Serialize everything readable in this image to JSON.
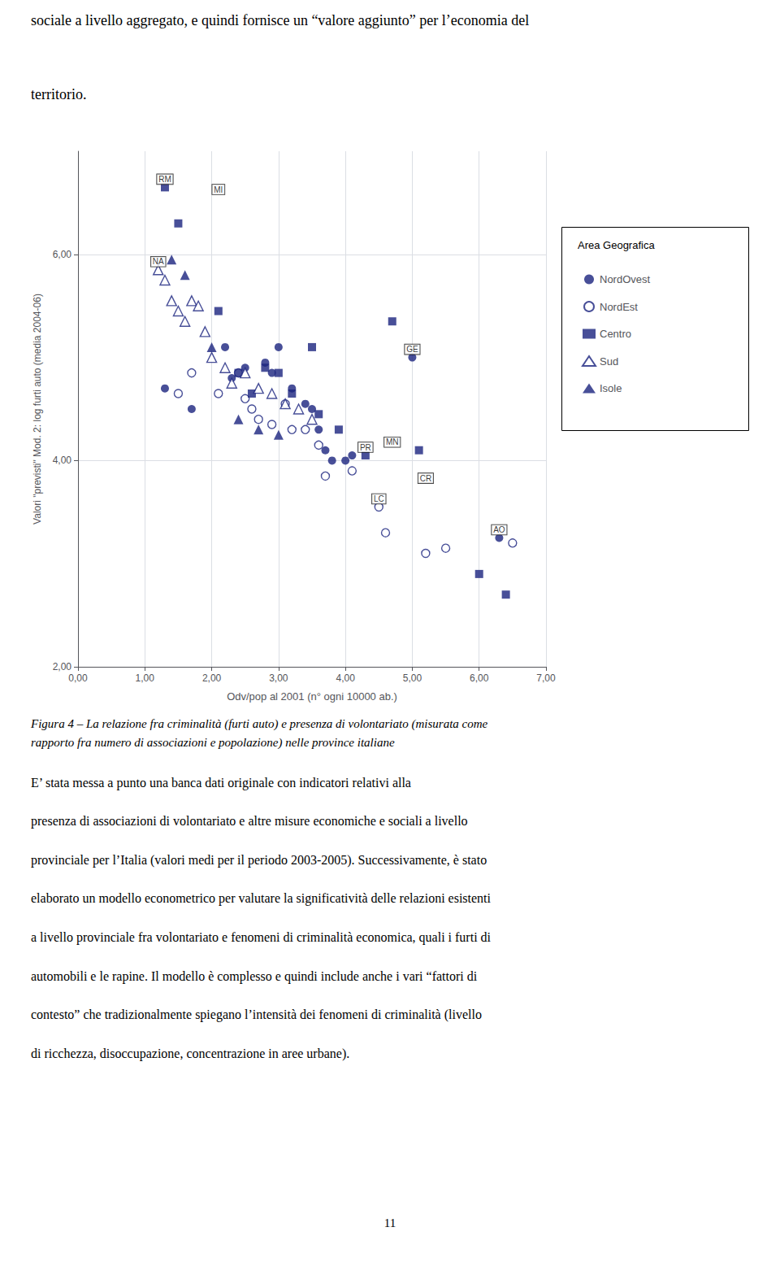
{
  "chart_data": {
    "type": "scatter",
    "text_above": [
      "sociale a livello aggregato, e quindi fornisce un “valore aggiunto” per l’economia del",
      "territorio."
    ],
    "caption": [
      "Figura 4 – La relazione fra criminalità (furti auto) e presenza di volontariato (misurata come",
      "rapporto fra numero di associazioni e popolazione) nelle province italiane"
    ],
    "body": [
      "E’ stata messa a punto una banca dati originale con indicatori relativi alla",
      "presenza di associazioni di volontariato e altre misure economiche e sociali a livello",
      "provinciale per l’Italia (valori medi per il periodo 2003-2005). Successivamente, è stato",
      "elaborato un modello econometrico per valutare la significatività delle relazioni esistenti",
      "a livello provinciale fra volontariato e fenomeni di criminalità economica, quali i furti di",
      "automobili e le rapine. Il modello è complesso e quindi include anche i vari “fattori di",
      "contesto” che tradizionalmente spiegano l’intensità dei fenomeni di criminalità (livello",
      "di ricchezza, disoccupazione, concentrazione in aree urbane)."
    ],
    "page_number": "11",
    "x_label": "Odv/pop al 2001 (n° ogni 10000 ab.)",
    "y_label": "Valori \"previsti\" Mod. 2: log furti auto (media 2004-06)",
    "xlim": [
      0.0,
      7.0
    ],
    "ylim": [
      2.0,
      7.0
    ],
    "xticks": [
      {
        "value": 0.0,
        "label": "0,00"
      },
      {
        "value": 1.0,
        "label": "1,00"
      },
      {
        "value": 2.0,
        "label": "2,00"
      },
      {
        "value": 3.0,
        "label": "3,00"
      },
      {
        "value": 4.0,
        "label": "4,00"
      },
      {
        "value": 5.0,
        "label": "5,00"
      },
      {
        "value": 6.0,
        "label": "6,00"
      },
      {
        "value": 7.0,
        "label": "7,00"
      }
    ],
    "yticks": [
      {
        "value": 2.0,
        "label": "2,00"
      },
      {
        "value": 4.0,
        "label": "4,00"
      },
      {
        "value": 6.0,
        "label": "6,00"
      }
    ],
    "grid": true,
    "legend": "right",
    "legend_title": "Area Geografica",
    "color": "#1a237e",
    "series": [
      {
        "name": "NordOvest",
        "marker": "circle",
        "x": [
          1.3,
          1.7,
          2.2,
          2.3,
          2.5,
          2.8,
          2.9,
          3.0,
          3.2,
          3.4,
          3.5,
          3.6,
          3.7,
          3.8,
          4.0,
          4.1,
          5.0,
          6.3
        ],
        "y": [
          4.7,
          4.5,
          5.1,
          4.8,
          4.9,
          4.95,
          4.85,
          5.1,
          4.7,
          4.55,
          4.5,
          4.3,
          4.1,
          4.0,
          4.0,
          4.05,
          5.0,
          3.25
        ]
      },
      {
        "name": "NordEst",
        "marker": "open_circle",
        "x": [
          1.5,
          1.7,
          2.1,
          2.4,
          2.5,
          2.6,
          2.7,
          2.9,
          3.1,
          3.2,
          3.4,
          3.6,
          3.7,
          4.1,
          4.5,
          4.6,
          5.2,
          5.5,
          6.5
        ],
        "y": [
          4.65,
          4.85,
          4.65,
          4.85,
          4.6,
          4.5,
          4.4,
          4.35,
          4.55,
          4.3,
          4.3,
          4.15,
          3.85,
          3.9,
          3.55,
          3.3,
          3.1,
          3.15,
          3.2
        ]
      },
      {
        "name": "Centro",
        "marker": "square",
        "x": [
          1.3,
          1.5,
          2.1,
          2.4,
          2.6,
          2.8,
          3.0,
          3.2,
          3.5,
          3.6,
          3.9,
          4.3,
          4.7,
          5.1,
          6.0,
          6.4
        ],
        "y": [
          6.65,
          6.3,
          5.45,
          4.85,
          4.65,
          4.9,
          4.85,
          4.65,
          5.1,
          4.45,
          4.3,
          4.05,
          5.35,
          4.1,
          2.9,
          2.7
        ]
      },
      {
        "name": "Sud",
        "marker": "open_triangle",
        "x": [
          1.2,
          1.3,
          1.4,
          1.5,
          1.6,
          1.7,
          1.8,
          1.9,
          2.0,
          2.2,
          2.3,
          2.5,
          2.7,
          2.9,
          3.1,
          3.3,
          3.5
        ],
        "y": [
          5.85,
          5.75,
          5.55,
          5.45,
          5.35,
          5.55,
          5.5,
          5.25,
          5.0,
          4.9,
          4.75,
          4.85,
          4.7,
          4.65,
          4.55,
          4.5,
          4.4
        ]
      },
      {
        "name": "Isole",
        "marker": "triangle",
        "x": [
          1.4,
          1.6,
          2.0,
          2.4,
          2.7,
          3.0
        ],
        "y": [
          5.95,
          5.8,
          5.1,
          4.4,
          4.3,
          4.25
        ]
      }
    ],
    "annotations": [
      {
        "label": "RM",
        "x": 1.3,
        "y": 6.65
      },
      {
        "label": "NA",
        "x": 1.2,
        "y": 5.85
      },
      {
        "label": "MI",
        "x": 2.1,
        "y": 6.55
      },
      {
        "label": "GE",
        "x": 5.0,
        "y": 5.0
      },
      {
        "label": "PR",
        "x": 4.3,
        "y": 4.05
      },
      {
        "label": "MN",
        "x": 4.7,
        "y": 4.1
      },
      {
        "label": "LC",
        "x": 4.5,
        "y": 3.55
      },
      {
        "label": "CR",
        "x": 5.2,
        "y": 3.75
      },
      {
        "label": "AO",
        "x": 6.3,
        "y": 3.25
      }
    ]
  }
}
